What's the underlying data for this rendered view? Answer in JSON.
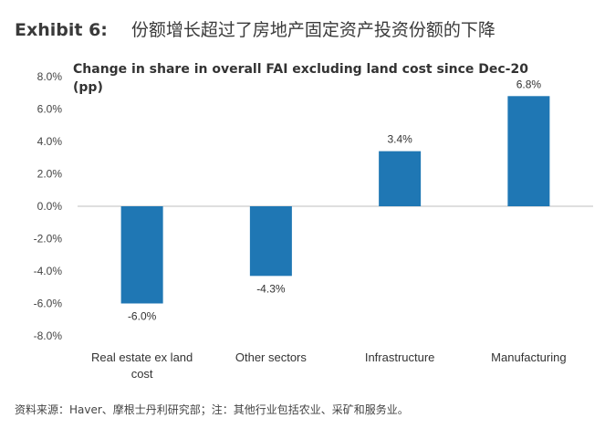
{
  "header": {
    "exhibit_number": "Exhibit 6:",
    "exhibit_title": "份额增长超过了房地产固定资产投资份额的下降"
  },
  "chart_data": {
    "type": "bar",
    "title": "Change in share in overall FAI excluding land cost since Dec-20 (pp)",
    "categories": [
      [
        "Real estate ex land",
        "cost"
      ],
      [
        "Other sectors"
      ],
      [
        "Infrastructure"
      ],
      [
        "Manufacturing"
      ]
    ],
    "values": [
      -6.0,
      -4.3,
      3.4,
      6.8
    ],
    "data_labels": [
      "-6.0%",
      "-4.3%",
      "3.4%",
      "6.8%"
    ],
    "y_ticks": [
      8.0,
      6.0,
      4.0,
      2.0,
      0.0,
      -2.0,
      -4.0,
      -6.0,
      -8.0
    ],
    "y_tick_labels": [
      "8.0%",
      "6.0%",
      "4.0%",
      "2.0%",
      "0.0%",
      "-2.0%",
      "-4.0%",
      "-6.0%",
      "-8.0%"
    ],
    "ylim": [
      -8,
      8
    ],
    "bar_color": "#1f77b4",
    "grid": false,
    "legend": "none",
    "xlabel": "",
    "ylabel": ""
  },
  "footer": {
    "source": "资料来源：Haver、摩根士丹利研究部；注：其他行业包括农业、采矿和服务业。"
  }
}
